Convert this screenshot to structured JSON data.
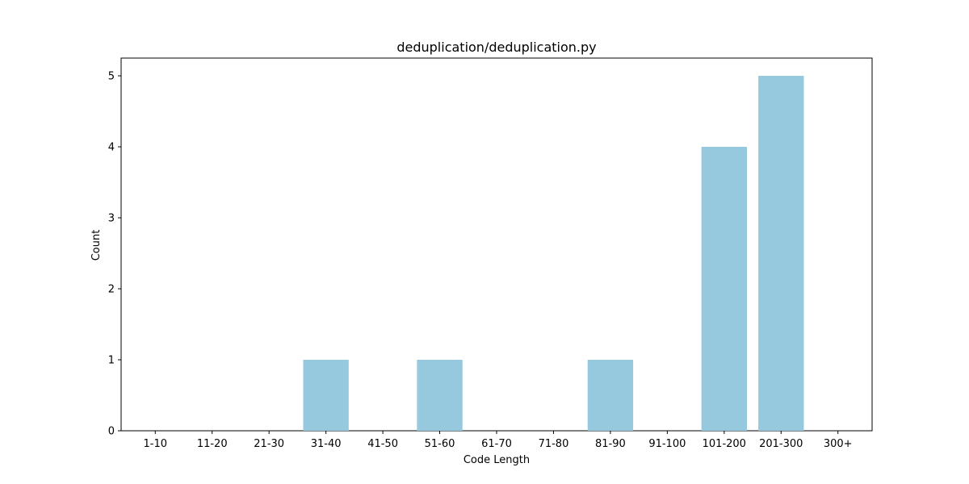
{
  "chart_data": {
    "type": "bar",
    "title": "deduplication/deduplication.py",
    "xlabel": "Code Length",
    "ylabel": "Count",
    "categories": [
      "1-10",
      "11-20",
      "21-30",
      "31-40",
      "41-50",
      "51-60",
      "61-70",
      "71-80",
      "81-90",
      "91-100",
      "101-200",
      "201-300",
      "300+"
    ],
    "values": [
      0,
      0,
      0,
      1,
      0,
      1,
      0,
      0,
      1,
      0,
      4,
      5,
      0
    ],
    "ylim": [
      0,
      5.25
    ],
    "yticks": [
      0,
      1,
      2,
      3,
      4,
      5
    ],
    "grid": false,
    "bar_color": "#96c9de",
    "axis_color": "#000000"
  }
}
